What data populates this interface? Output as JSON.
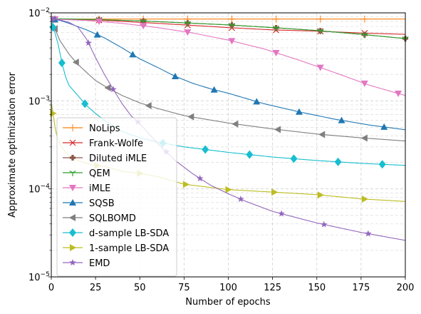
{
  "chart_data": {
    "type": "line",
    "title": "",
    "xlabel": "Number of epochs",
    "ylabel": "Approximate optimization error",
    "xlim": [
      0,
      200
    ],
    "ylim": [
      1e-05,
      0.01
    ],
    "yscale": "log",
    "grid": true,
    "legend_position": "lower-left",
    "x_ticks": [
      0,
      25,
      50,
      75,
      100,
      125,
      150,
      175,
      200
    ],
    "x_tick_labels": [
      "0",
      "25",
      "50",
      "75",
      "100",
      "125",
      "150",
      "175",
      "200"
    ],
    "y_ticks": [
      1e-05,
      0.0001,
      0.001,
      0.01
    ],
    "y_tick_labels": [
      {
        "base": "10",
        "exp": "−5"
      },
      {
        "base": "10",
        "exp": "−4"
      },
      {
        "base": "10",
        "exp": "−3"
      },
      {
        "base": "10",
        "exp": "−2"
      }
    ],
    "series": [
      {
        "name": "NoLips",
        "color": "#ff7f0e",
        "marker": "plus",
        "x": [
          0,
          25,
          50,
          100,
          150,
          200
        ],
        "y": [
          0.0085,
          0.0085,
          0.0085,
          0.0085,
          0.0085,
          0.0085
        ],
        "marker_x": [
          2,
          27,
          52,
          77,
          102,
          127,
          152,
          177
        ]
      },
      {
        "name": "Frank-Wolfe",
        "color": "#d62728",
        "marker": "x",
        "x": [
          0,
          25,
          50,
          75,
          100,
          125,
          150,
          175,
          200
        ],
        "y": [
          0.0085,
          0.0083,
          0.0078,
          0.0073,
          0.0068,
          0.0064,
          0.0062,
          0.0059,
          0.0057
        ],
        "marker_x": [
          2,
          27,
          52,
          77,
          102,
          127,
          152,
          177
        ]
      },
      {
        "name": "Diluted iMLE",
        "color": "#8c564b",
        "marker": "plus-filled",
        "x": [
          0,
          25,
          50,
          75,
          100,
          125,
          150,
          175,
          200
        ],
        "y": [
          0.0085,
          0.0084,
          0.0081,
          0.0077,
          0.0073,
          0.0068,
          0.0063,
          0.0057,
          0.0051
        ],
        "marker_x": [
          2,
          27,
          52,
          77,
          102,
          127,
          152,
          177,
          200
        ]
      },
      {
        "name": "QEM",
        "color": "#2ca02c",
        "marker": "tri-down",
        "x": [
          0,
          25,
          50,
          75,
          100,
          125,
          150,
          175,
          200
        ],
        "y": [
          0.0086,
          0.0084,
          0.0081,
          0.0077,
          0.0073,
          0.0068,
          0.0063,
          0.0057,
          0.0051
        ],
        "marker_x": [
          2,
          27,
          52,
          77,
          102,
          127,
          152,
          177,
          200
        ]
      },
      {
        "name": "iMLE",
        "color": "#e377c2",
        "marker": "triangle-down",
        "x": [
          0,
          20,
          40,
          60,
          80,
          100,
          120,
          140,
          160,
          180,
          200
        ],
        "y": [
          0.0085,
          0.0082,
          0.0076,
          0.0068,
          0.0059,
          0.0049,
          0.0039,
          0.0029,
          0.0021,
          0.0015,
          0.00115
        ],
        "marker_x": [
          2,
          27,
          52,
          77,
          102,
          127,
          152,
          177,
          196
        ]
      },
      {
        "name": "SQSB",
        "color": "#1f77b4",
        "marker": "triangle-up",
        "x": [
          0,
          5,
          10,
          20,
          30,
          40,
          50,
          60,
          70,
          80,
          90,
          100,
          120,
          140,
          160,
          180,
          200
        ],
        "y": [
          0.0085,
          0.0082,
          0.0076,
          0.0064,
          0.0052,
          0.004,
          0.003,
          0.0024,
          0.0019,
          0.00158,
          0.00137,
          0.00122,
          0.00093,
          0.00075,
          0.00062,
          0.00053,
          0.00047
        ],
        "marker_x": [
          2,
          26,
          46,
          70,
          92,
          116,
          140,
          164,
          188
        ]
      },
      {
        "name": "SQLBOMD",
        "color": "#7f7f7f",
        "marker": "triangle-left",
        "x": [
          0,
          2,
          5,
          10,
          15,
          20,
          25,
          30,
          40,
          50,
          60,
          75,
          100,
          125,
          150,
          175,
          200
        ],
        "y": [
          0.0085,
          0.0066,
          0.0048,
          0.0034,
          0.0026,
          0.0021,
          0.0017,
          0.00148,
          0.00115,
          0.00095,
          0.00082,
          0.00068,
          0.00056,
          0.00048,
          0.00042,
          0.00038,
          0.00035
        ],
        "marker_x": [
          2,
          14,
          32,
          55,
          79,
          104,
          128,
          153,
          177
        ]
      },
      {
        "name": "d-sample LB-SDA",
        "color": "#17becf",
        "marker": "diamond",
        "x": [
          0,
          2,
          4,
          6,
          8,
          10,
          15,
          20,
          25,
          30,
          40,
          50,
          60,
          75,
          100,
          125,
          150,
          175,
          200
        ],
        "y": [
          0.0078,
          0.006,
          0.0043,
          0.0027,
          0.0019,
          0.0015,
          0.00115,
          0.00088,
          0.00072,
          0.0006,
          0.00045,
          0.00038,
          0.00034,
          0.0003,
          0.00026,
          0.00023,
          0.00021,
          0.000195,
          0.000185
        ],
        "marker_x": [
          1,
          6,
          19,
          63,
          87,
          112,
          137,
          162,
          187
        ]
      },
      {
        "name": "1-sample LB-SDA",
        "color": "#bcbd22",
        "marker": "triangle-right",
        "x": [
          0,
          1,
          2,
          3,
          5,
          8,
          10,
          15,
          20,
          25,
          30,
          40,
          50,
          60,
          75,
          100,
          125,
          150,
          175,
          200
        ],
        "y": [
          0.00095,
          0.00072,
          0.00052,
          0.00041,
          0.00032,
          0.00026,
          0.00024,
          0.00021,
          0.000195,
          0.000185,
          0.00018,
          0.000158,
          0.00015,
          0.000138,
          0.000113,
          9.8e-05,
          9.2e-05,
          8.6e-05,
          7.7e-05,
          7.2e-05
        ],
        "marker_x": [
          1,
          26,
          50,
          76,
          100,
          126,
          152,
          177
        ]
      },
      {
        "name": "EMD",
        "color": "#9467bd",
        "marker": "star",
        "x": [
          0,
          5,
          10,
          15,
          20,
          25,
          30,
          35,
          40,
          45,
          50,
          60,
          70,
          80,
          90,
          100,
          110,
          125,
          150,
          175,
          200
        ],
        "y": [
          0.0085,
          0.0083,
          0.0078,
          0.0069,
          0.005,
          0.0031,
          0.002,
          0.00135,
          0.00093,
          0.00068,
          0.00055,
          0.00033,
          0.00021,
          0.000148,
          0.00011,
          8.8e-05,
          7.2e-05,
          5.55e-05,
          4.1e-05,
          3.2e-05,
          2.6e-05
        ],
        "marker_x": [
          1,
          21,
          35,
          49,
          65,
          84,
          107,
          130,
          154,
          179
        ]
      }
    ]
  }
}
